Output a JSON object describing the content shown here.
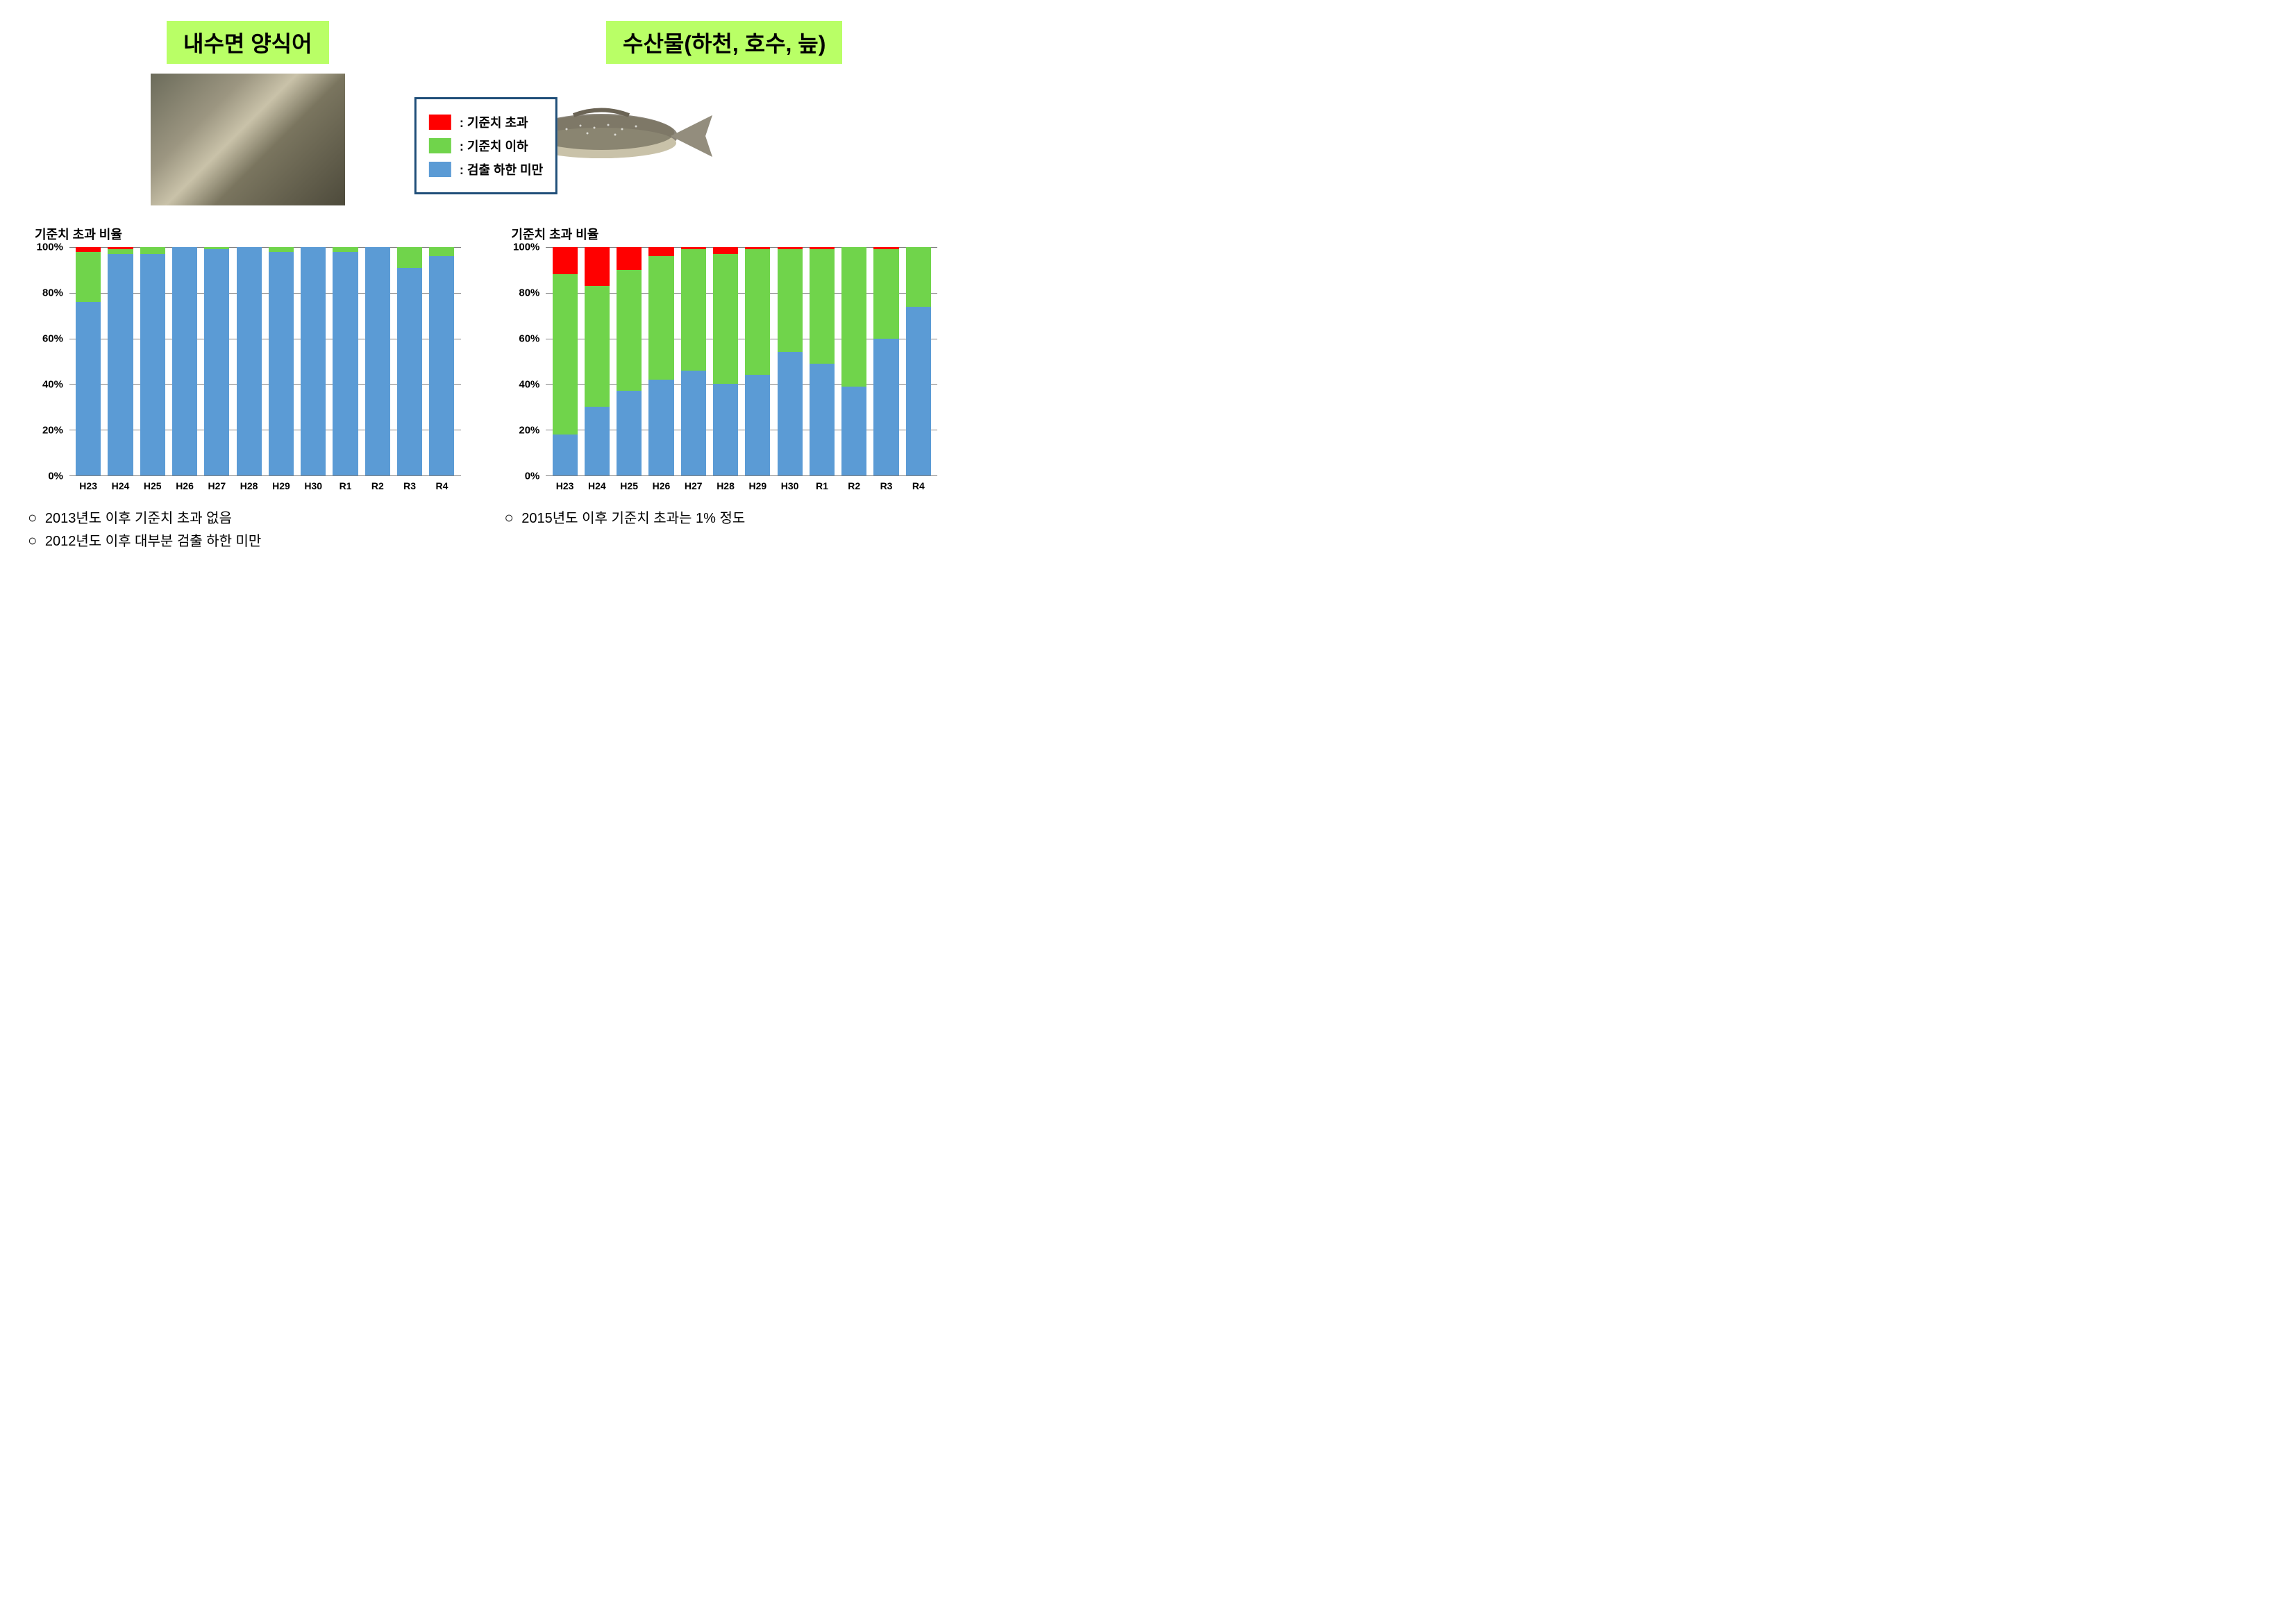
{
  "colors": {
    "exceed": "#ff0000",
    "below": "#70d44b",
    "under_limit": "#5b9bd5",
    "title_bg": "#b9ff66",
    "legend_border": "#1f4e79",
    "grid": "#808080",
    "background": "#ffffff"
  },
  "left": {
    "title": "내수면 양식어",
    "image_alt": "farmed-fish-pile"
  },
  "right": {
    "title": "수산물(하천, 호수, 늪)",
    "image_alt": "river-fish"
  },
  "legend": {
    "items": [
      {
        "key": "exceed",
        "label": ": 기준치 초과"
      },
      {
        "key": "below",
        "label": ": 기준치 이하"
      },
      {
        "key": "under_limit",
        "label": ": 검출 하한 미만"
      }
    ]
  },
  "chart_left": {
    "type": "stacked-bar",
    "title": "기준치 초과 비율",
    "ylim": [
      0,
      100
    ],
    "ytick_step": 20,
    "y_suffix": "%",
    "y_ticks": [
      "0%",
      "20%",
      "40%",
      "60%",
      "80%",
      "100%"
    ],
    "categories": [
      "H23",
      "H24",
      "H25",
      "H26",
      "H27",
      "H28",
      "H29",
      "H30",
      "R1",
      "R2",
      "R3",
      "R4"
    ],
    "series_order": [
      "under_limit",
      "below",
      "exceed"
    ],
    "data": [
      {
        "under_limit": 76,
        "below": 22,
        "exceed": 2
      },
      {
        "under_limit": 97,
        "below": 2,
        "exceed": 1
      },
      {
        "under_limit": 97,
        "below": 3,
        "exceed": 0
      },
      {
        "under_limit": 100,
        "below": 0,
        "exceed": 0
      },
      {
        "under_limit": 99,
        "below": 1,
        "exceed": 0
      },
      {
        "under_limit": 100,
        "below": 0,
        "exceed": 0
      },
      {
        "under_limit": 98,
        "below": 2,
        "exceed": 0
      },
      {
        "under_limit": 100,
        "below": 0,
        "exceed": 0
      },
      {
        "under_limit": 98,
        "below": 2,
        "exceed": 0
      },
      {
        "under_limit": 100,
        "below": 0,
        "exceed": 0
      },
      {
        "under_limit": 91,
        "below": 9,
        "exceed": 0
      },
      {
        "under_limit": 96,
        "below": 4,
        "exceed": 0
      }
    ],
    "notes": [
      "2013년도 이후 기준치 초과 없음",
      "2012년도 이후 대부분 검출 하한 미만"
    ]
  },
  "chart_right": {
    "type": "stacked-bar",
    "title": "기준치 초과 비율",
    "ylim": [
      0,
      100
    ],
    "ytick_step": 20,
    "y_suffix": "%",
    "y_ticks": [
      "0%",
      "20%",
      "40%",
      "60%",
      "80%",
      "100%"
    ],
    "categories": [
      "H23",
      "H24",
      "H25",
      "H26",
      "H27",
      "H28",
      "H29",
      "H30",
      "R1",
      "R2",
      "R3",
      "R4"
    ],
    "series_order": [
      "under_limit",
      "below",
      "exceed"
    ],
    "data": [
      {
        "under_limit": 18,
        "below": 70,
        "exceed": 12
      },
      {
        "under_limit": 30,
        "below": 53,
        "exceed": 17
      },
      {
        "under_limit": 37,
        "below": 53,
        "exceed": 10
      },
      {
        "under_limit": 42,
        "below": 54,
        "exceed": 4
      },
      {
        "under_limit": 46,
        "below": 53,
        "exceed": 1
      },
      {
        "under_limit": 40,
        "below": 57,
        "exceed": 3
      },
      {
        "under_limit": 44,
        "below": 55,
        "exceed": 1
      },
      {
        "under_limit": 54,
        "below": 45,
        "exceed": 1
      },
      {
        "under_limit": 49,
        "below": 50,
        "exceed": 1
      },
      {
        "under_limit": 39,
        "below": 61,
        "exceed": 0
      },
      {
        "under_limit": 60,
        "below": 39,
        "exceed": 1
      },
      {
        "under_limit": 74,
        "below": 26,
        "exceed": 0
      }
    ],
    "notes": [
      "2015년도 이후 기준치 초과는 1% 정도"
    ]
  },
  "typography": {
    "title_fontsize": 32,
    "chart_title_fontsize": 18,
    "axis_label_fontsize": 15,
    "category_fontsize": 14,
    "legend_fontsize": 18,
    "note_fontsize": 20
  }
}
